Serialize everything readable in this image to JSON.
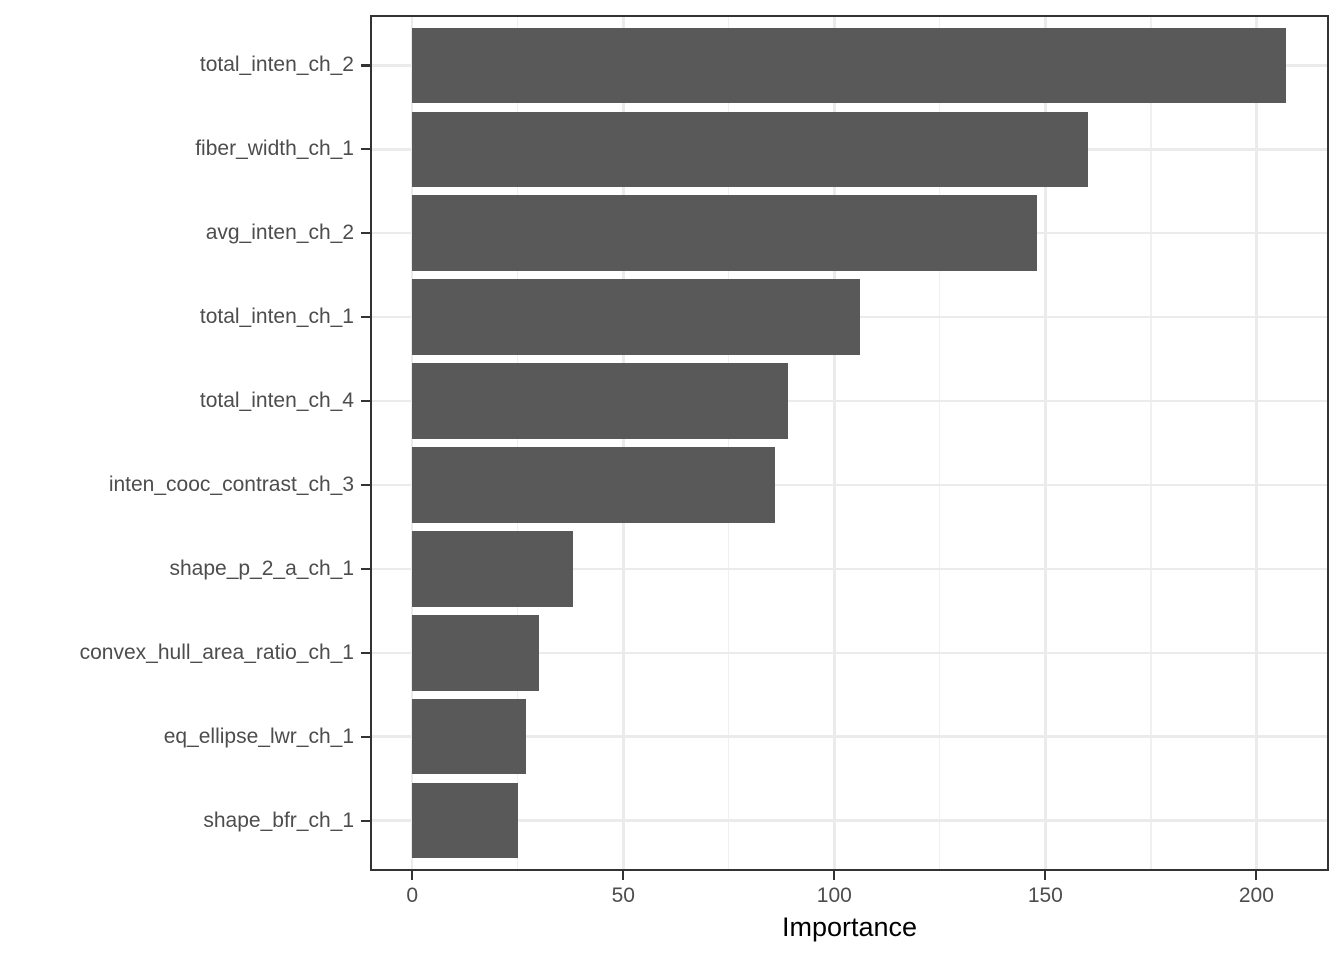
{
  "chart_data": {
    "type": "bar",
    "orientation": "horizontal",
    "title": "",
    "xlabel": "Importance",
    "ylabel": "",
    "categories": [
      "total_inten_ch_2",
      "fiber_width_ch_1",
      "avg_inten_ch_2",
      "total_inten_ch_1",
      "total_inten_ch_4",
      "inten_cooc_contrast_ch_3",
      "shape_p_2_a_ch_1",
      "convex_hull_area_ratio_ch_1",
      "eq_ellipse_lwr_ch_1",
      "shape_bfr_ch_1"
    ],
    "values": [
      207,
      160,
      148,
      106,
      89,
      86,
      38,
      30,
      27,
      25
    ],
    "x_ticks": [
      0,
      50,
      100,
      150,
      200
    ],
    "x_tick_labels": [
      "0",
      "50",
      "100",
      "150",
      "200"
    ],
    "x_minor_ticks": [
      25,
      75,
      125,
      175
    ],
    "xlim": [
      -10,
      217.2
    ],
    "grid": true,
    "legend": false,
    "colors": {
      "bar": "#595959",
      "grid_major": "#ebebeb",
      "grid_minor": "#f0f0f0",
      "panel_border": "#333333",
      "tick": "#333333",
      "axis_text": "#4d4d4d",
      "axis_title": "#000000",
      "background": "#ffffff"
    }
  }
}
